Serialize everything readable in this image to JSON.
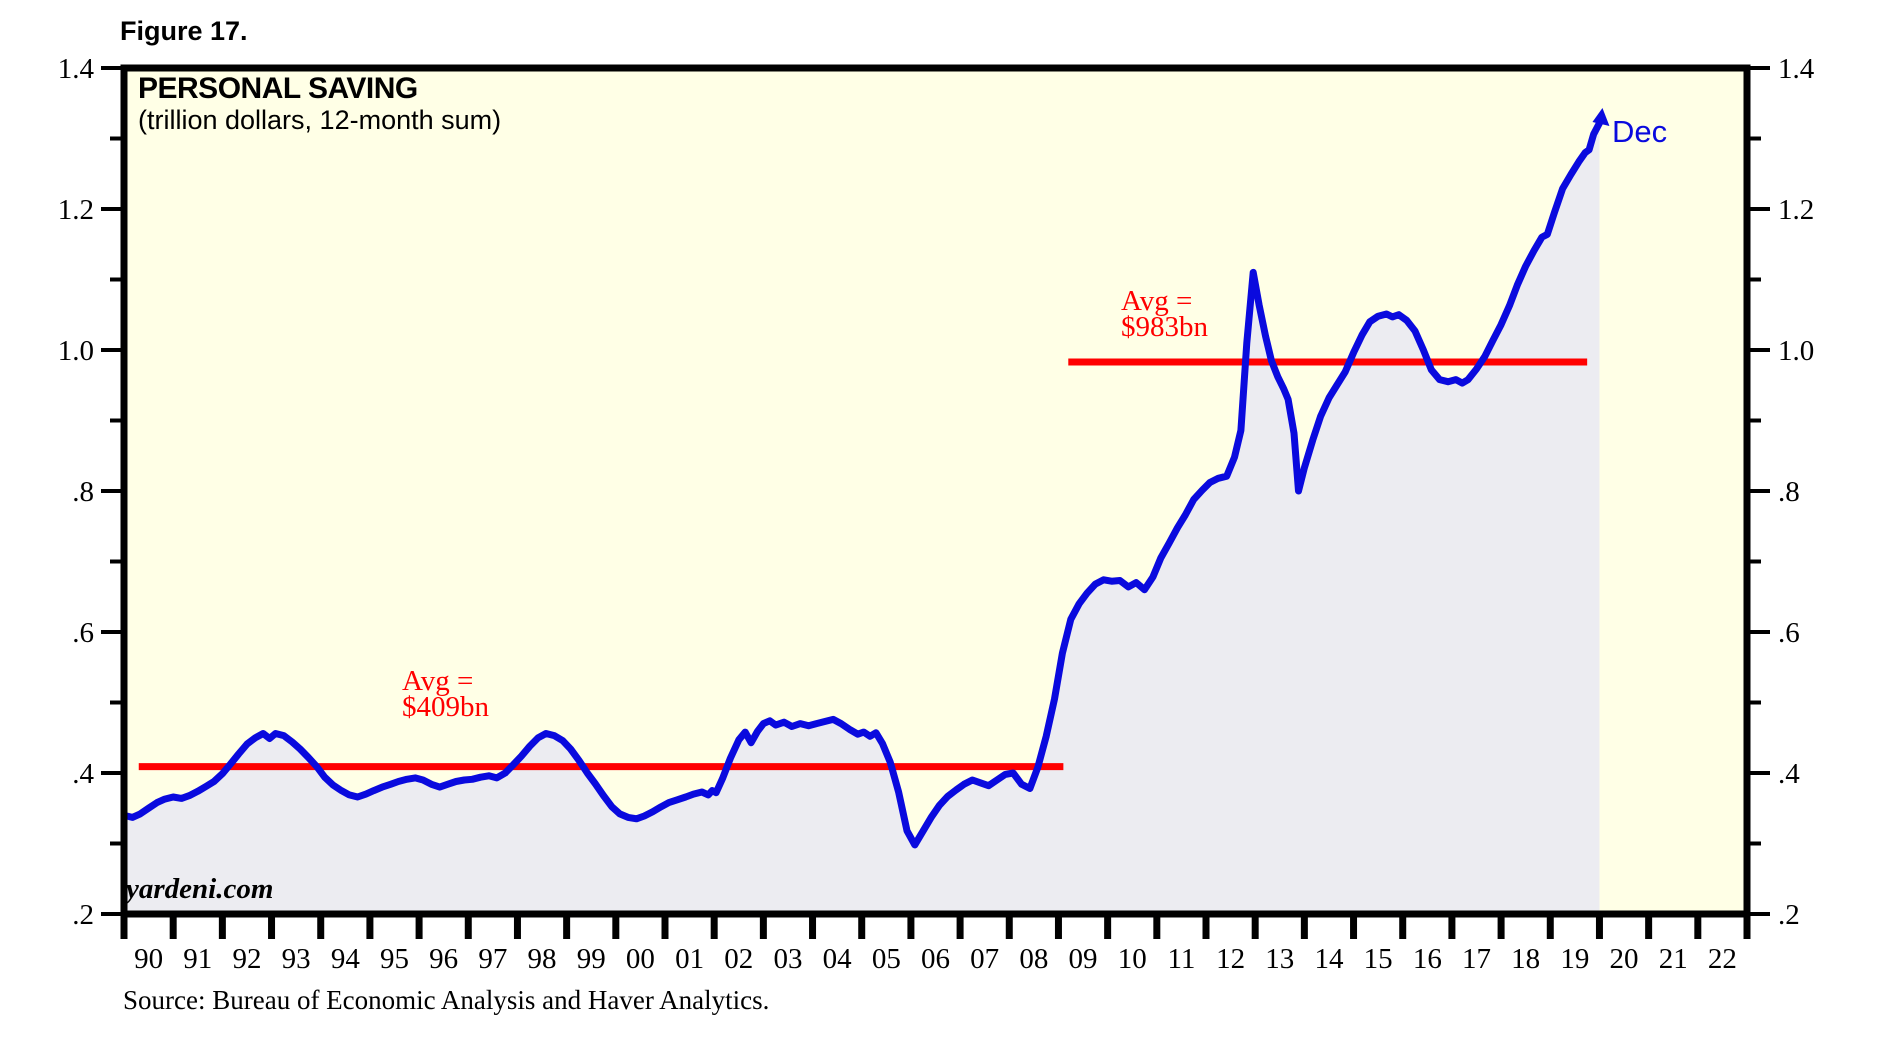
{
  "figure_label": "Figure 17.",
  "chart": {
    "title": "PERSONAL SAVING",
    "subtitle": "(trillion dollars, 12-month sum)",
    "watermark": "yardeni.com",
    "end_label": "Dec",
    "avg1_line1": "Avg =",
    "avg1_line2": "$409bn",
    "avg2_line1": "Avg =",
    "avg2_line2": "$983bn"
  },
  "source": "Source: Bureau of Economic Analysis and Haver Analytics.",
  "colors": {
    "plot_bg": "#FFFFE6",
    "area_fill": "#ECECF1",
    "line": "#0A0ADE",
    "avg_line": "#FF0000",
    "frame": "#000000",
    "tick_label": "#000000"
  },
  "chart_data": {
    "type": "area",
    "title": "PERSONAL SAVING",
    "subtitle": "(trillion dollars, 12-month sum)",
    "x_axis": {
      "min": 1990,
      "max": 2023,
      "tick_step_years": 1,
      "tick_labels": [
        "90",
        "91",
        "92",
        "93",
        "94",
        "95",
        "96",
        "97",
        "98",
        "99",
        "00",
        "01",
        "02",
        "03",
        "04",
        "05",
        "06",
        "07",
        "08",
        "09",
        "10",
        "11",
        "12",
        "13",
        "14",
        "15",
        "16",
        "17",
        "18",
        "19",
        "20",
        "21",
        "22"
      ]
    },
    "y_axis": {
      "min": 0.2,
      "max": 1.4,
      "major_tick_step": 0.2,
      "minor_tick_step": 0.1,
      "sides": "both",
      "tick_labels": [
        "1.4",
        "1.2",
        "1.0",
        ".8",
        ".6",
        ".4",
        ".2"
      ]
    },
    "average_lines": [
      {
        "label": "Avg = $409bn",
        "value": 0.409,
        "x_start": 1990.3,
        "x_end": 2009.1
      },
      {
        "label": "Avg = $983bn",
        "value": 0.983,
        "x_start": 2009.2,
        "x_end": 2019.75
      }
    ],
    "annotations": [
      {
        "text": "Dec",
        "x": 2020.0,
        "y": 1.322
      }
    ],
    "series": [
      {
        "name": "Personal saving, 12-month sum (trillion dollars)",
        "color": "#0A0ADE",
        "area_fill": "#ECECF1",
        "points": [
          [
            1990.0,
            0.34
          ],
          [
            1990.17,
            0.337
          ],
          [
            1990.33,
            0.342
          ],
          [
            1990.5,
            0.35
          ],
          [
            1990.67,
            0.358
          ],
          [
            1990.83,
            0.363
          ],
          [
            1991.0,
            0.366
          ],
          [
            1991.17,
            0.364
          ],
          [
            1991.33,
            0.368
          ],
          [
            1991.5,
            0.374
          ],
          [
            1991.67,
            0.381
          ],
          [
            1991.83,
            0.388
          ],
          [
            1992.0,
            0.399
          ],
          [
            1992.17,
            0.413
          ],
          [
            1992.33,
            0.427
          ],
          [
            1992.5,
            0.441
          ],
          [
            1992.67,
            0.45
          ],
          [
            1992.83,
            0.456
          ],
          [
            1992.96,
            0.449
          ],
          [
            1993.08,
            0.456
          ],
          [
            1993.25,
            0.453
          ],
          [
            1993.42,
            0.444
          ],
          [
            1993.58,
            0.434
          ],
          [
            1993.75,
            0.422
          ],
          [
            1993.92,
            0.409
          ],
          [
            1994.08,
            0.394
          ],
          [
            1994.25,
            0.383
          ],
          [
            1994.42,
            0.375
          ],
          [
            1994.58,
            0.369
          ],
          [
            1994.75,
            0.366
          ],
          [
            1994.92,
            0.37
          ],
          [
            1995.08,
            0.375
          ],
          [
            1995.25,
            0.38
          ],
          [
            1995.42,
            0.384
          ],
          [
            1995.58,
            0.388
          ],
          [
            1995.75,
            0.391
          ],
          [
            1995.92,
            0.393
          ],
          [
            1996.08,
            0.39
          ],
          [
            1996.25,
            0.384
          ],
          [
            1996.42,
            0.38
          ],
          [
            1996.58,
            0.384
          ],
          [
            1996.75,
            0.388
          ],
          [
            1996.92,
            0.39
          ],
          [
            1997.08,
            0.391
          ],
          [
            1997.25,
            0.394
          ],
          [
            1997.42,
            0.396
          ],
          [
            1997.58,
            0.393
          ],
          [
            1997.75,
            0.4
          ],
          [
            1997.92,
            0.412
          ],
          [
            1998.08,
            0.424
          ],
          [
            1998.25,
            0.438
          ],
          [
            1998.42,
            0.45
          ],
          [
            1998.58,
            0.456
          ],
          [
            1998.75,
            0.453
          ],
          [
            1998.92,
            0.446
          ],
          [
            1999.08,
            0.434
          ],
          [
            1999.25,
            0.418
          ],
          [
            1999.42,
            0.4
          ],
          [
            1999.58,
            0.385
          ],
          [
            1999.75,
            0.368
          ],
          [
            1999.92,
            0.352
          ],
          [
            2000.08,
            0.342
          ],
          [
            2000.25,
            0.337
          ],
          [
            2000.42,
            0.335
          ],
          [
            2000.58,
            0.339
          ],
          [
            2000.75,
            0.345
          ],
          [
            2000.92,
            0.352
          ],
          [
            2001.08,
            0.358
          ],
          [
            2001.25,
            0.362
          ],
          [
            2001.42,
            0.366
          ],
          [
            2001.58,
            0.37
          ],
          [
            2001.75,
            0.373
          ],
          [
            2001.88,
            0.369
          ],
          [
            2001.96,
            0.375
          ],
          [
            2002.04,
            0.372
          ],
          [
            2002.17,
            0.392
          ],
          [
            2002.33,
            0.421
          ],
          [
            2002.5,
            0.447
          ],
          [
            2002.63,
            0.458
          ],
          [
            2002.75,
            0.443
          ],
          [
            2002.88,
            0.459
          ],
          [
            2003.0,
            0.47
          ],
          [
            2003.13,
            0.474
          ],
          [
            2003.25,
            0.468
          ],
          [
            2003.42,
            0.472
          ],
          [
            2003.58,
            0.466
          ],
          [
            2003.75,
            0.47
          ],
          [
            2003.92,
            0.467
          ],
          [
            2004.08,
            0.47
          ],
          [
            2004.25,
            0.473
          ],
          [
            2004.42,
            0.476
          ],
          [
            2004.58,
            0.47
          ],
          [
            2004.75,
            0.462
          ],
          [
            2004.92,
            0.455
          ],
          [
            2005.04,
            0.458
          ],
          [
            2005.17,
            0.452
          ],
          [
            2005.29,
            0.457
          ],
          [
            2005.42,
            0.442
          ],
          [
            2005.58,
            0.415
          ],
          [
            2005.75,
            0.373
          ],
          [
            2005.92,
            0.318
          ],
          [
            2006.08,
            0.298
          ],
          [
            2006.25,
            0.318
          ],
          [
            2006.42,
            0.338
          ],
          [
            2006.58,
            0.354
          ],
          [
            2006.75,
            0.367
          ],
          [
            2006.92,
            0.376
          ],
          [
            2007.08,
            0.384
          ],
          [
            2007.25,
            0.39
          ],
          [
            2007.42,
            0.386
          ],
          [
            2007.58,
            0.382
          ],
          [
            2007.75,
            0.39
          ],
          [
            2007.92,
            0.398
          ],
          [
            2008.08,
            0.4
          ],
          [
            2008.25,
            0.384
          ],
          [
            2008.42,
            0.378
          ],
          [
            2008.58,
            0.408
          ],
          [
            2008.75,
            0.452
          ],
          [
            2008.92,
            0.505
          ],
          [
            2009.08,
            0.57
          ],
          [
            2009.25,
            0.618
          ],
          [
            2009.42,
            0.64
          ],
          [
            2009.58,
            0.655
          ],
          [
            2009.75,
            0.668
          ],
          [
            2009.92,
            0.674
          ],
          [
            2010.08,
            0.672
          ],
          [
            2010.25,
            0.673
          ],
          [
            2010.42,
            0.664
          ],
          [
            2010.58,
            0.67
          ],
          [
            2010.75,
            0.66
          ],
          [
            2010.92,
            0.678
          ],
          [
            2011.08,
            0.705
          ],
          [
            2011.25,
            0.726
          ],
          [
            2011.42,
            0.748
          ],
          [
            2011.58,
            0.766
          ],
          [
            2011.75,
            0.788
          ],
          [
            2011.92,
            0.801
          ],
          [
            2012.08,
            0.812
          ],
          [
            2012.25,
            0.818
          ],
          [
            2012.42,
            0.821
          ],
          [
            2012.58,
            0.848
          ],
          [
            2012.71,
            0.886
          ],
          [
            2012.83,
            1.01
          ],
          [
            2012.96,
            1.11
          ],
          [
            2013.08,
            1.064
          ],
          [
            2013.21,
            1.02
          ],
          [
            2013.33,
            0.985
          ],
          [
            2013.46,
            0.962
          ],
          [
            2013.58,
            0.945
          ],
          [
            2013.67,
            0.93
          ],
          [
            2013.79,
            0.882
          ],
          [
            2013.88,
            0.8
          ],
          [
            2014.0,
            0.833
          ],
          [
            2014.17,
            0.872
          ],
          [
            2014.33,
            0.906
          ],
          [
            2014.5,
            0.932
          ],
          [
            2014.67,
            0.951
          ],
          [
            2014.83,
            0.969
          ],
          [
            2015.0,
            0.996
          ],
          [
            2015.17,
            1.021
          ],
          [
            2015.33,
            1.04
          ],
          [
            2015.5,
            1.048
          ],
          [
            2015.67,
            1.051
          ],
          [
            2015.79,
            1.047
          ],
          [
            2015.92,
            1.05
          ],
          [
            2016.08,
            1.042
          ],
          [
            2016.25,
            1.027
          ],
          [
            2016.42,
            1.0
          ],
          [
            2016.58,
            0.972
          ],
          [
            2016.75,
            0.958
          ],
          [
            2016.92,
            0.955
          ],
          [
            2017.08,
            0.958
          ],
          [
            2017.21,
            0.953
          ],
          [
            2017.33,
            0.958
          ],
          [
            2017.5,
            0.973
          ],
          [
            2017.67,
            0.991
          ],
          [
            2017.83,
            1.013
          ],
          [
            2018.0,
            1.036
          ],
          [
            2018.17,
            1.063
          ],
          [
            2018.33,
            1.092
          ],
          [
            2018.5,
            1.119
          ],
          [
            2018.67,
            1.141
          ],
          [
            2018.83,
            1.16
          ],
          [
            2018.94,
            1.164
          ],
          [
            2019.08,
            1.194
          ],
          [
            2019.25,
            1.229
          ],
          [
            2019.42,
            1.249
          ],
          [
            2019.58,
            1.267
          ],
          [
            2019.71,
            1.28
          ],
          [
            2019.79,
            1.284
          ],
          [
            2019.88,
            1.306
          ],
          [
            2020.0,
            1.322
          ]
        ]
      }
    ]
  }
}
